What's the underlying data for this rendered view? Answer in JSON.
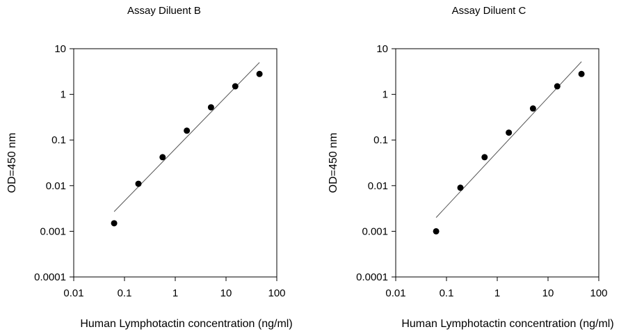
{
  "chart_data": [
    {
      "type": "scatter",
      "title": "Assay Diluent B",
      "xlabel": "Human Lymphotactin concentration (ng/ml)",
      "ylabel": "OD=450 nm",
      "x_scale": "log",
      "y_scale": "log",
      "xlim": [
        0.01,
        100
      ],
      "ylim": [
        0.0001,
        10
      ],
      "x_ticks": [
        "0.01",
        "0.1",
        "1",
        "10",
        "100"
      ],
      "y_ticks": [
        "0.0001",
        "0.001",
        "0.01",
        "0.1",
        "1",
        "10"
      ],
      "grid": false,
      "series": [
        {
          "x": [
            0.0625,
            0.188,
            0.563,
            1.69,
            5.06,
            15.2,
            45.6
          ],
          "y": [
            0.0015,
            0.011,
            0.042,
            0.16,
            0.52,
            1.5,
            2.8
          ]
        }
      ],
      "fit_line": {
        "x": [
          0.0625,
          45.6
        ],
        "y": [
          0.0027,
          5.0
        ]
      }
    },
    {
      "type": "scatter",
      "title": "Assay Diluent C",
      "xlabel": "Human Lymphotactin concentration (ng/ml)",
      "ylabel": "OD=450 nm",
      "x_scale": "log",
      "y_scale": "log",
      "xlim": [
        0.01,
        100
      ],
      "ylim": [
        0.0001,
        10
      ],
      "x_ticks": [
        "0.01",
        "0.1",
        "1",
        "10",
        "100"
      ],
      "y_ticks": [
        "0.0001",
        "0.001",
        "0.01",
        "0.1",
        "1",
        "10"
      ],
      "grid": false,
      "series": [
        {
          "x": [
            0.0625,
            0.188,
            0.563,
            1.69,
            5.06,
            15.2,
            45.6
          ],
          "y": [
            0.001,
            0.009,
            0.042,
            0.145,
            0.49,
            1.5,
            2.8
          ]
        }
      ],
      "fit_line": {
        "x": [
          0.0625,
          45.6
        ],
        "y": [
          0.002,
          5.2
        ]
      }
    }
  ]
}
